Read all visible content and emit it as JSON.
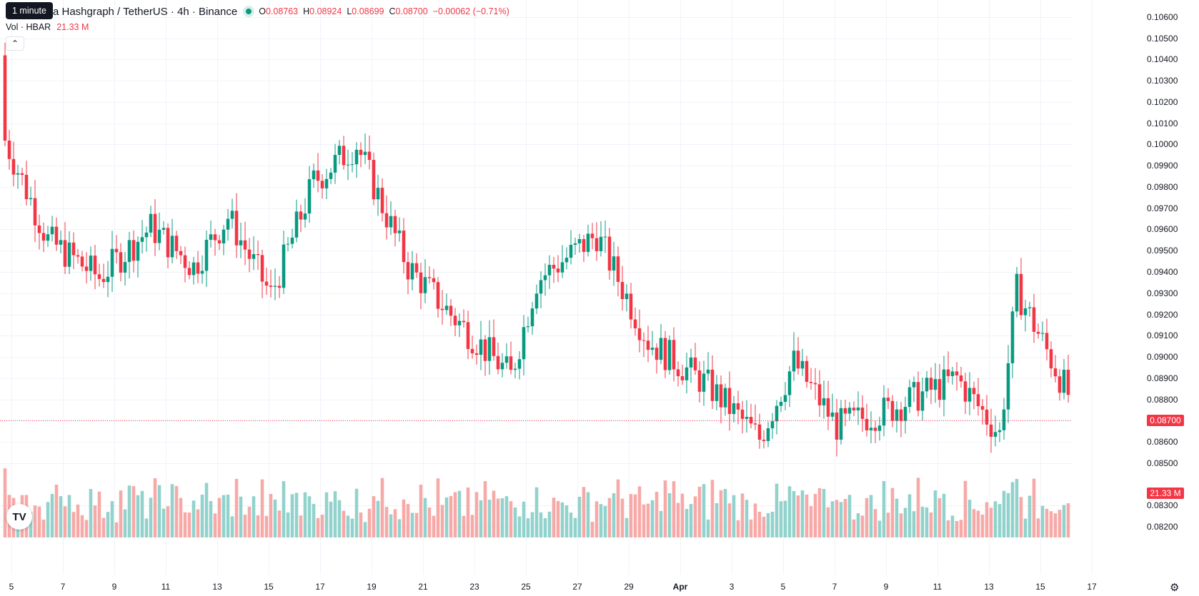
{
  "header": {
    "tooltip": "1 minute",
    "title": "a Hashgraph / TetherUS · 4h · Binance",
    "ohlc": [
      {
        "k": "O",
        "v": "0.08763"
      },
      {
        "k": "H",
        "v": "0.08924"
      },
      {
        "k": "L",
        "v": "0.08699"
      },
      {
        "k": "C",
        "v": "0.08700"
      }
    ],
    "change": "−0.00062 (−0.71%)",
    "collapse_icon": "chevron-up-icon"
  },
  "volume_legend": {
    "label": "Vol · HBAR",
    "value": "21.33 M"
  },
  "price_tag": "0.08700",
  "volume_tag": "21.33 M",
  "colors": {
    "up": "#089981",
    "down": "#f23645",
    "up_volume": "#92d2cc",
    "down_volume": "#f7a9a7",
    "grid": "#f0f3fa"
  },
  "chart_data": {
    "type": "candlestick",
    "interval": "4h",
    "price_axis": {
      "min": 0.0819,
      "max": 0.1061,
      "labels": [
        "0.10600",
        "0.10500",
        "0.10400",
        "0.10300",
        "0.10200",
        "0.10100",
        "0.10000",
        "0.09900",
        "0.09800",
        "0.09700",
        "0.09600",
        "0.09500",
        "0.09400",
        "0.09300",
        "0.09200",
        "0.09100",
        "0.09000",
        "0.08900",
        "0.08800",
        "0.08700",
        "0.08600",
        "0.08500",
        "0.08300",
        "0.08200"
      ]
    },
    "time_axis": {
      "labels": [
        "5",
        "7",
        "9",
        "11",
        "13",
        "15",
        "17",
        "19",
        "21",
        "23",
        "25",
        "27",
        "29",
        "Apr",
        "3",
        "5",
        "7",
        "9",
        "11",
        "13",
        "15",
        "17"
      ],
      "bold": [
        "Apr"
      ]
    },
    "candles_per_day": 6,
    "anchors": [
      [
        0,
        0.1042,
        0.0962
      ],
      [
        10,
        0.097,
        0.094
      ],
      [
        22,
        0.0945,
        0.093
      ],
      [
        34,
        0.0972,
        0.095
      ],
      [
        44,
        0.095,
        0.0935
      ],
      [
        52,
        0.0982,
        0.095
      ],
      [
        62,
        0.094,
        0.0918
      ],
      [
        72,
        0.1,
        0.0965
      ],
      [
        82,
        0.1005,
        0.0995
      ],
      [
        94,
        0.095,
        0.0935
      ],
      [
        104,
        0.0925,
        0.0915
      ],
      [
        118,
        0.0882,
        0.09
      ],
      [
        124,
        0.0942,
        0.093
      ],
      [
        138,
        0.0955,
        0.096
      ],
      [
        150,
        0.091,
        0.0905
      ],
      [
        164,
        0.0898,
        0.0875
      ],
      [
        176,
        0.0875,
        0.0848
      ],
      [
        184,
        0.09,
        0.0895
      ],
      [
        194,
        0.0865,
        0.087
      ],
      [
        206,
        0.0876,
        0.0874
      ],
      [
        222,
        0.0895,
        0.0885
      ],
      [
        232,
        0.0865,
        0.0862
      ],
      [
        236,
        0.0935,
        0.0928
      ],
      [
        248,
        0.0885,
        0.088
      ],
      [
        262,
        0.088,
        0.0878
      ],
      [
        276,
        0.0855,
        0.085
      ],
      [
        290,
        0.087,
        0.0879
      ],
      [
        295,
        0.0876,
        0.087
      ]
    ],
    "last_candle": {
      "open": 0.08763,
      "high": 0.08924,
      "low": 0.08699,
      "close": 0.087
    },
    "last_volume_m": 21.33
  }
}
